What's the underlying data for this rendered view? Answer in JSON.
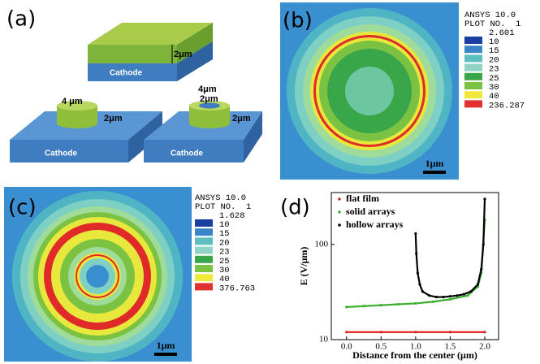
{
  "panel_a": {
    "label": "(a)",
    "cathode_labels": [
      "Cathode",
      "Cathode",
      "Cathode"
    ],
    "dims": [
      "2μm",
      "4 μm",
      "2μm",
      "4μm",
      "2μm",
      "2μm"
    ]
  },
  "panel_b": {
    "label": "(b)",
    "legend_title": "ANSYS 10.0",
    "plot_no": "PLOT NO.  1",
    "levels": [
      2.601,
      10,
      15,
      20,
      23,
      25,
      30,
      40,
      236.287
    ],
    "scale": "1μm"
  },
  "panel_c": {
    "label": "(c)",
    "legend_title": "ANSYS 10.0",
    "plot_no": "PLOT NO.  1",
    "levels": [
      1.628,
      10,
      15,
      20,
      23,
      25,
      30,
      40,
      376.763
    ],
    "scale": "1μm"
  },
  "chart_data": {
    "type": "scatter",
    "label": "(d)",
    "x_label": "Distance from the center (μm)",
    "y_label": "E (V/μm)",
    "yscale": "log",
    "xlim": [
      -0.22,
      2.2
    ],
    "ylim": [
      10,
      350
    ],
    "xticks": [
      {
        "value": 0,
        "label": "0.0"
      },
      0.5,
      {
        "value": 1,
        "label": "1.0"
      },
      1.5,
      {
        "value": 2,
        "label": "2.0"
      }
    ],
    "yticks": [
      10,
      100
    ],
    "series": [
      {
        "name": "flat film",
        "color": "#e02020",
        "x": [
          0,
          0.5,
          1,
          1.5,
          2
        ],
        "values": [
          12,
          12,
          12,
          12,
          12
        ]
      },
      {
        "name": "solid arrays",
        "color": "#3cb030",
        "x": [
          0,
          0.25,
          0.5,
          0.75,
          1,
          1.25,
          1.5,
          1.75,
          1.9,
          1.95,
          2
        ],
        "values": [
          22,
          22.5,
          23,
          23.5,
          24,
          25,
          26.5,
          29,
          36,
          50,
          180
        ]
      },
      {
        "name": "hollow arrays",
        "color": "#000000",
        "x": [
          1,
          1.01,
          1.03,
          1.06,
          1.1,
          1.2,
          1.3,
          1.4,
          1.5,
          1.6,
          1.7,
          1.8,
          1.9,
          1.95,
          1.98,
          2
        ],
        "values": [
          130,
          80,
          50,
          38,
          32,
          29,
          28,
          28,
          28.5,
          29,
          30,
          32,
          38,
          55,
          100,
          300
        ]
      }
    ]
  }
}
